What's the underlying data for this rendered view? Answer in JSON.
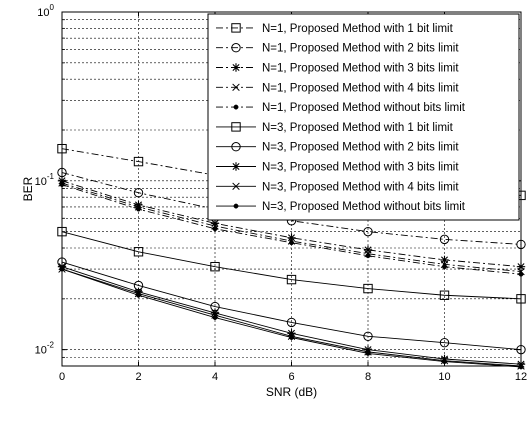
{
  "chart_data": {
    "type": "line",
    "title": "",
    "xlabel": "SNR (dB)",
    "ylabel": "BER",
    "xlim": [
      0,
      12
    ],
    "ylim": [
      0.008,
      1
    ],
    "yscale": "log",
    "grid": true,
    "legend_position": "top-right",
    "x": [
      0,
      2,
      4,
      6,
      8,
      10,
      12
    ],
    "x_ticks": [
      0,
      2,
      4,
      6,
      8,
      10,
      12
    ],
    "y_ticks": [
      {
        "value": 1,
        "base": "10",
        "exp": "0"
      },
      {
        "value": 0.1,
        "base": "10",
        "exp": "-1"
      },
      {
        "value": 0.01,
        "base": "10",
        "exp": "-2"
      }
    ],
    "series": [
      {
        "name": "N=1, Proposed Method with 1 bit limit",
        "values": [
          0.155,
          0.13,
          0.108,
          0.098,
          0.09,
          0.085,
          0.082
        ],
        "marker": "square",
        "dash": "dashdot"
      },
      {
        "name": "N=1, Proposed Method with 2 bits limit",
        "values": [
          0.112,
          0.085,
          0.068,
          0.058,
          0.05,
          0.045,
          0.042
        ],
        "marker": "circle",
        "dash": "dashdot"
      },
      {
        "name": "N=1, Proposed Method with 3 bits limit",
        "values": [
          0.1,
          0.072,
          0.056,
          0.046,
          0.039,
          0.034,
          0.031
        ],
        "marker": "star",
        "dash": "dashdot"
      },
      {
        "name": "N=1, Proposed Method with 4 bits limit",
        "values": [
          0.097,
          0.07,
          0.054,
          0.044,
          0.037,
          0.032,
          0.029
        ],
        "marker": "x",
        "dash": "dashdot"
      },
      {
        "name": "N=1, Proposed Method without bits limit",
        "values": [
          0.095,
          0.068,
          0.052,
          0.043,
          0.036,
          0.031,
          0.028
        ],
        "marker": "dot",
        "dash": "dashdot"
      },
      {
        "name": "N=3, Proposed Method with 1 bit limit",
        "values": [
          0.05,
          0.038,
          0.031,
          0.026,
          0.023,
          0.021,
          0.02
        ],
        "marker": "square",
        "dash": "solid"
      },
      {
        "name": "N=3, Proposed Method with 2 bits limit",
        "values": [
          0.033,
          0.024,
          0.018,
          0.0145,
          0.012,
          0.011,
          0.01
        ],
        "marker": "circle",
        "dash": "solid"
      },
      {
        "name": "N=3, Proposed Method with 3 bits limit",
        "values": [
          0.031,
          0.022,
          0.0165,
          0.0125,
          0.01,
          0.0088,
          0.0082
        ],
        "marker": "star",
        "dash": "solid"
      },
      {
        "name": "N=3, Proposed Method with 4 bits limit",
        "values": [
          0.03,
          0.0215,
          0.016,
          0.012,
          0.0097,
          0.0086,
          0.008
        ],
        "marker": "x",
        "dash": "solid"
      },
      {
        "name": "N=3, Proposed Method without bits limit",
        "values": [
          0.03,
          0.021,
          0.0155,
          0.0118,
          0.0095,
          0.0085,
          0.0079
        ],
        "marker": "dot",
        "dash": "solid"
      }
    ]
  }
}
